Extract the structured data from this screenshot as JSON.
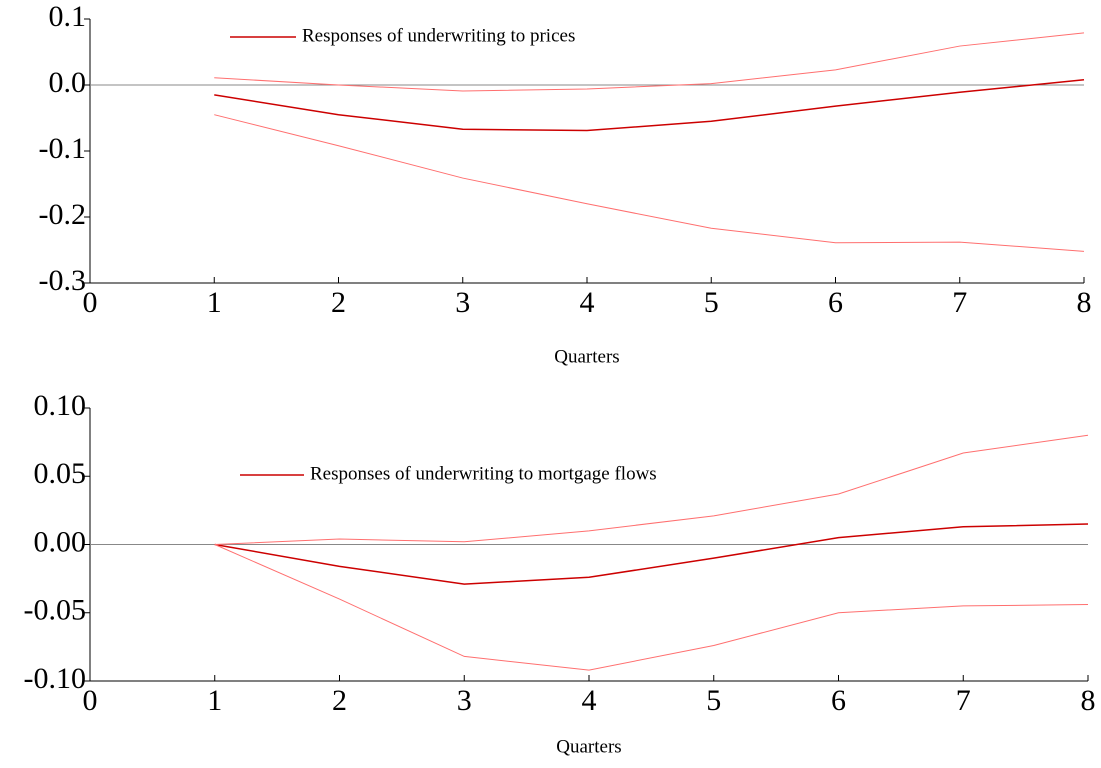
{
  "chart_data": [
    {
      "type": "line",
      "x_label": "Quarters",
      "x": [
        1,
        2,
        3,
        4,
        5,
        6,
        7,
        8
      ],
      "series": [
        {
          "name": "Responses of underwriting to prices",
          "color": "#cc0000",
          "values": [
            -0.015,
            -0.045,
            -0.067,
            -0.069,
            -0.055,
            -0.032,
            -0.011,
            0.008
          ]
        },
        {
          "color": "#ff6f6f",
          "values": [
            0.011,
            0.0,
            -0.009,
            -0.006,
            0.002,
            0.023,
            0.059,
            0.079
          ]
        },
        {
          "color": "#ff6f6f",
          "values": [
            -0.045,
            -0.092,
            -0.141,
            -0.18,
            -0.217,
            -0.239,
            -0.238,
            -0.252
          ]
        }
      ],
      "xlim": [
        0,
        8
      ],
      "xticks": [
        0,
        1,
        2,
        3,
        4,
        5,
        6,
        7,
        8
      ],
      "ylim": [
        -0.3,
        0.1
      ],
      "yticks": [
        0.1,
        {
          "value": 0,
          "label": "0.0"
        },
        -0.1,
        -0.2,
        -0.3
      ],
      "legend": "upper left"
    },
    {
      "type": "line",
      "x_label": "Quarters",
      "x": [
        1,
        2,
        3,
        4,
        5,
        6,
        7,
        8
      ],
      "series": [
        {
          "name": "Responses of underwriting to mortgage flows",
          "color": "#cc0000",
          "values": [
            0,
            -0.016,
            -0.029,
            -0.024,
            -0.01,
            0.005,
            0.013,
            0.015
          ]
        },
        {
          "color": "#ff6f6f",
          "values": [
            0,
            0.004,
            0.002,
            0.01,
            0.021,
            0.037,
            0.067,
            0.08
          ]
        },
        {
          "color": "#ff6f6f",
          "values": [
            0,
            -0.04,
            -0.082,
            -0.092,
            -0.074,
            -0.05,
            -0.045,
            -0.044
          ]
        }
      ],
      "xlim": [
        0,
        8
      ],
      "xticks": [
        0,
        1,
        2,
        3,
        4,
        5,
        6,
        7,
        8
      ],
      "ylim": [
        -0.1,
        0.1
      ],
      "yticks": [
        {
          "value": 0.1,
          "label": "0.10"
        },
        {
          "value": 0.05,
          "label": "0.05"
        },
        {
          "value": 0,
          "label": "0.00"
        },
        {
          "value": -0.05,
          "label": "-0.05"
        },
        {
          "value": -0.1,
          "label": "-0.10"
        }
      ],
      "legend": "upper left"
    }
  ]
}
